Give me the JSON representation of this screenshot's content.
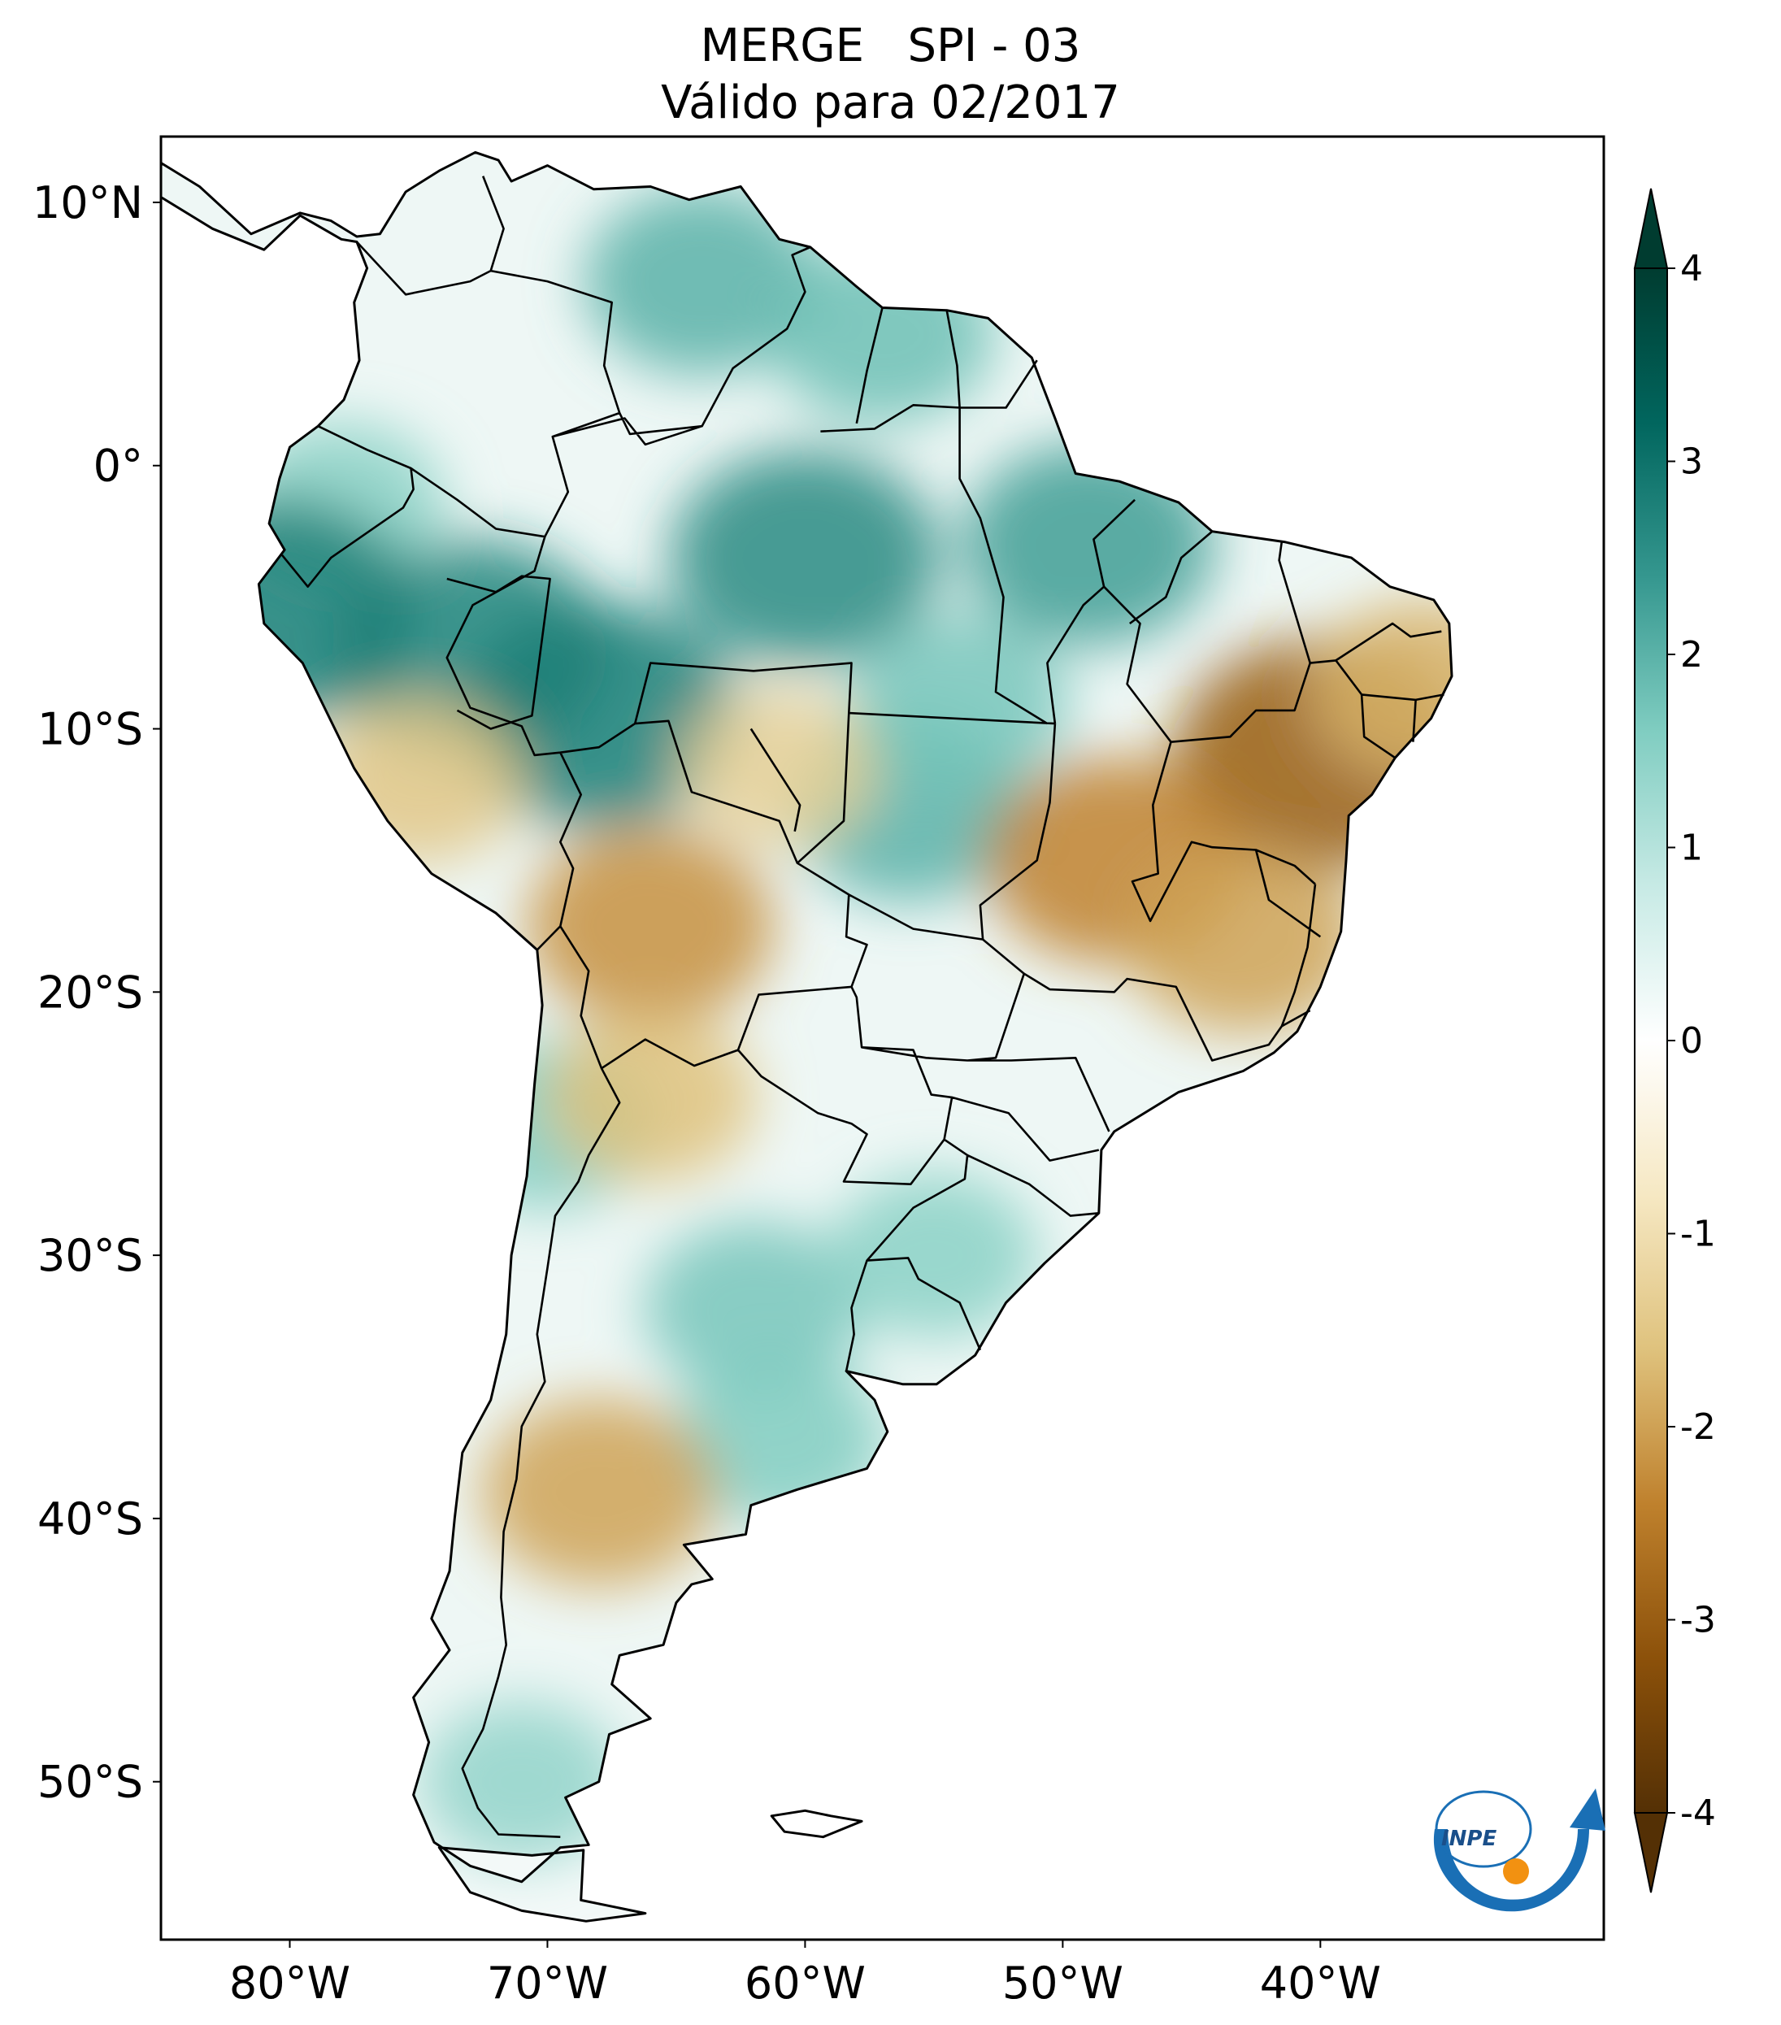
{
  "title": {
    "line1": "MERGE   SPI - 03",
    "line2": "Válido para 02/2017"
  },
  "map": {
    "lon_range": [
      -85,
      -29
    ],
    "lat_range": [
      -56,
      12.5
    ],
    "lon_ticks": [
      {
        "value": -80,
        "label": "80°W"
      },
      {
        "value": -70,
        "label": "70°W"
      },
      {
        "value": -60,
        "label": "60°W"
      },
      {
        "value": -50,
        "label": "50°W"
      },
      {
        "value": -40,
        "label": "40°W"
      }
    ],
    "lat_ticks": [
      {
        "value": 10,
        "label": "10°N"
      },
      {
        "value": 0,
        "label": "0°"
      },
      {
        "value": -10,
        "label": "10°S"
      },
      {
        "value": -20,
        "label": "20°S"
      },
      {
        "value": -30,
        "label": "30°S"
      },
      {
        "value": -40,
        "label": "40°S"
      },
      {
        "value": -50,
        "label": "50°S"
      }
    ],
    "anomaly_regions": [
      {
        "lon": -64,
        "lat": 7,
        "value": 2.0
      },
      {
        "lon": -57,
        "lat": 5,
        "value": 1.8
      },
      {
        "lon": -60,
        "lat": -3.5,
        "value": 2.6
      },
      {
        "lon": -49,
        "lat": -3,
        "value": 2.3
      },
      {
        "lon": -73,
        "lat": -7,
        "value": 2.7
      },
      {
        "lon": -78,
        "lat": -1.5,
        "value": 1.5
      },
      {
        "lon": -80.5,
        "lat": -5.5,
        "value": 2.8
      },
      {
        "lon": -68,
        "lat": -9.5,
        "value": 2.8
      },
      {
        "lon": -56,
        "lat": -13,
        "value": 2.0
      },
      {
        "lon": -54,
        "lat": -9,
        "value": 1.7
      },
      {
        "lon": -62,
        "lat": -32,
        "value": 1.7
      },
      {
        "lon": -61,
        "lat": -37,
        "value": 1.6
      },
      {
        "lon": -71,
        "lat": -50,
        "value": 1.4
      },
      {
        "lon": -55,
        "lat": -30,
        "value": 1.5
      },
      {
        "lon": -70,
        "lat": -25,
        "value": 1.6
      },
      {
        "lon": -40,
        "lat": -11,
        "value": -3.0
      },
      {
        "lon": -48,
        "lat": -15,
        "value": -2.4
      },
      {
        "lon": -43,
        "lat": -18,
        "value": -2.0
      },
      {
        "lon": -66,
        "lat": -17.5,
        "value": -2.2
      },
      {
        "lon": -68,
        "lat": -39,
        "value": -2.0
      },
      {
        "lon": -66,
        "lat": -24,
        "value": -1.6
      },
      {
        "lon": -75,
        "lat": -12,
        "value": -1.5
      },
      {
        "lon": -61,
        "lat": -11.5,
        "value": -1.3
      },
      {
        "lon": -36,
        "lat": -8.5,
        "value": -1.8
      }
    ]
  },
  "colorbar": {
    "min": -4,
    "max": 4,
    "ticks": [
      {
        "value": 4,
        "label": "4"
      },
      {
        "value": 3,
        "label": "3"
      },
      {
        "value": 2,
        "label": "2"
      },
      {
        "value": 1,
        "label": "1"
      },
      {
        "value": 0,
        "label": "0"
      },
      {
        "value": -1,
        "label": "-1"
      },
      {
        "value": -2,
        "label": "-2"
      },
      {
        "value": -3,
        "label": "-3"
      },
      {
        "value": -4,
        "label": "-4"
      }
    ],
    "colors": [
      "#543005",
      "#8c510a",
      "#bf812d",
      "#dfc27d",
      "#f6e8c3",
      "#ffffff",
      "#c7eae5",
      "#80cdc1",
      "#35978f",
      "#01665e",
      "#003c30"
    ]
  },
  "logo": {
    "text": "INPE",
    "colors": [
      "#1a6fb5",
      "#f29111"
    ]
  }
}
